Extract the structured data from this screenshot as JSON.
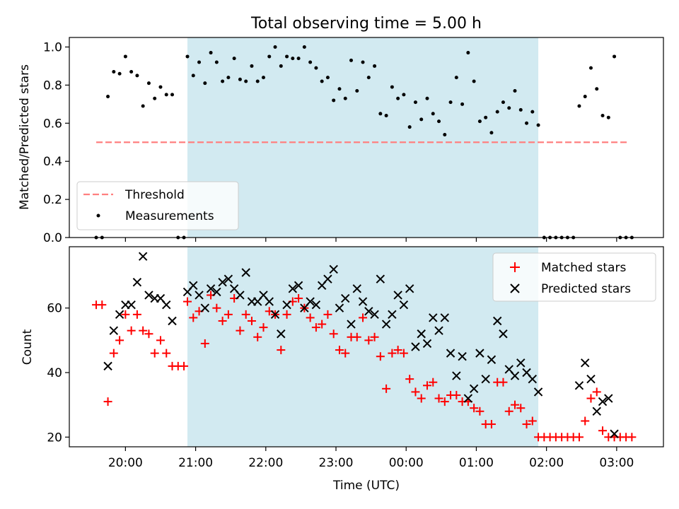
{
  "title": "Total observing time = 5.00 h",
  "colors": {
    "threshold": "#ff8080",
    "measurement": "#000000",
    "matched": "#ff0000",
    "predicted": "#000000",
    "shade": "#add8e6"
  },
  "chart_data": [
    {
      "type": "scatter",
      "ylabel": "Matched/Predicted stars",
      "ylim": [
        0,
        1.05
      ],
      "yticks": [
        0.0,
        0.2,
        0.4,
        0.6,
        0.8,
        1.0
      ],
      "ytick_labels": [
        "0.0",
        "0.2",
        "0.4",
        "0.6",
        "0.8",
        "1.0"
      ],
      "xlim": [
        "19:12",
        "03:40"
      ],
      "xticks": [
        "20:00",
        "21:00",
        "22:00",
        "23:00",
        "00:00",
        "01:00",
        "02:00",
        "03:00"
      ],
      "shaded_span": [
        "20:53",
        "01:53"
      ],
      "legend": {
        "position": "lower-left",
        "entries": [
          {
            "label": "Threshold",
            "marker": "dashed-line"
          },
          {
            "label": "Measurements",
            "marker": "dot"
          }
        ]
      },
      "threshold": {
        "name": "Threshold",
        "value": 0.5,
        "x_range": [
          "19:35",
          "03:10"
        ]
      },
      "series": [
        {
          "name": "Measurements",
          "x": [
            "19:35",
            "19:40",
            "19:45",
            "19:50",
            "19:55",
            "20:00",
            "20:05",
            "20:10",
            "20:15",
            "20:20",
            "20:25",
            "20:30",
            "20:35",
            "20:40",
            "20:45",
            "20:50",
            "20:53",
            "20:58",
            "21:03",
            "21:08",
            "21:13",
            "21:18",
            "21:23",
            "21:28",
            "21:33",
            "21:38",
            "21:43",
            "21:48",
            "21:53",
            "21:58",
            "22:03",
            "22:08",
            "22:13",
            "22:18",
            "22:23",
            "22:28",
            "22:33",
            "22:38",
            "22:43",
            "22:48",
            "22:53",
            "22:58",
            "23:03",
            "23:08",
            "23:13",
            "23:18",
            "23:23",
            "23:28",
            "23:33",
            "23:38",
            "23:43",
            "23:48",
            "23:53",
            "23:58",
            "00:03",
            "00:08",
            "00:13",
            "00:18",
            "00:23",
            "00:28",
            "00:33",
            "00:38",
            "00:43",
            "00:48",
            "00:53",
            "00:58",
            "01:03",
            "01:08",
            "01:13",
            "01:18",
            "01:23",
            "01:28",
            "01:33",
            "01:38",
            "01:43",
            "01:48",
            "01:53",
            "01:58",
            "02:03",
            "02:08",
            "02:13",
            "02:18",
            "02:23",
            "02:28",
            "02:33",
            "02:38",
            "02:43",
            "02:48",
            "02:53",
            "02:58",
            "03:03",
            "03:08",
            "03:13"
          ],
          "y": [
            0.0,
            0.0,
            0.74,
            0.87,
            0.86,
            0.95,
            0.87,
            0.85,
            0.69,
            0.81,
            0.73,
            0.79,
            0.75,
            0.75,
            0.0,
            0.0,
            0.95,
            0.85,
            0.92,
            0.81,
            0.97,
            0.92,
            0.82,
            0.84,
            0.94,
            0.83,
            0.82,
            0.9,
            0.82,
            0.84,
            0.95,
            1.0,
            0.9,
            0.95,
            0.94,
            0.94,
            1.0,
            0.92,
            0.89,
            0.82,
            0.84,
            0.72,
            0.78,
            0.73,
            0.93,
            0.77,
            0.92,
            0.84,
            0.9,
            0.65,
            0.64,
            0.79,
            0.73,
            0.75,
            0.58,
            0.71,
            0.62,
            0.73,
            0.65,
            0.61,
            0.54,
            0.71,
            0.84,
            0.7,
            0.97,
            0.82,
            0.61,
            0.63,
            0.55,
            0.66,
            0.71,
            0.68,
            0.77,
            0.67,
            0.6,
            0.66,
            0.59,
            0.0,
            0.0,
            0.0,
            0.0,
            0.0,
            0.0,
            0.69,
            0.74,
            0.89,
            0.78,
            0.64,
            0.63,
            0.95,
            0.0,
            0.0,
            0.0
          ]
        }
      ]
    },
    {
      "type": "scatter",
      "ylabel": "Count",
      "xlabel": "Time (UTC)",
      "ylim": [
        17,
        79
      ],
      "yticks": [
        20,
        40,
        60
      ],
      "ytick_labels": [
        "20",
        "40",
        "60"
      ],
      "xlim": [
        "19:12",
        "03:40"
      ],
      "xticks": [
        "20:00",
        "21:00",
        "22:00",
        "23:00",
        "00:00",
        "01:00",
        "02:00",
        "03:00"
      ],
      "xtick_labels": [
        "20:00",
        "21:00",
        "22:00",
        "23:00",
        "00:00",
        "01:00",
        "02:00",
        "03:00"
      ],
      "shaded_span": [
        "20:53",
        "01:53"
      ],
      "legend": {
        "position": "upper-right",
        "entries": [
          {
            "label": "Matched stars",
            "marker": "plus"
          },
          {
            "label": "Predicted stars",
            "marker": "cross"
          }
        ]
      },
      "series": [
        {
          "name": "Matched stars",
          "x": [
            "19:35",
            "19:40",
            "19:45",
            "19:50",
            "19:55",
            "20:00",
            "20:05",
            "20:10",
            "20:15",
            "20:20",
            "20:25",
            "20:30",
            "20:35",
            "20:40",
            "20:45",
            "20:50",
            "20:53",
            "20:58",
            "21:03",
            "21:08",
            "21:13",
            "21:18",
            "21:23",
            "21:28",
            "21:33",
            "21:38",
            "21:43",
            "21:48",
            "21:53",
            "21:58",
            "22:03",
            "22:08",
            "22:13",
            "22:18",
            "22:23",
            "22:28",
            "22:33",
            "22:38",
            "22:43",
            "22:48",
            "22:53",
            "22:58",
            "23:03",
            "23:08",
            "23:13",
            "23:18",
            "23:23",
            "23:28",
            "23:33",
            "23:38",
            "23:43",
            "23:48",
            "23:53",
            "23:58",
            "00:03",
            "00:08",
            "00:13",
            "00:18",
            "00:23",
            "00:28",
            "00:33",
            "00:38",
            "00:43",
            "00:48",
            "00:53",
            "00:58",
            "01:03",
            "01:08",
            "01:13",
            "01:18",
            "01:23",
            "01:28",
            "01:33",
            "01:38",
            "01:43",
            "01:48",
            "01:53",
            "01:58",
            "02:03",
            "02:08",
            "02:13",
            "02:18",
            "02:23",
            "02:28",
            "02:33",
            "02:38",
            "02:43",
            "02:48",
            "02:53",
            "02:58",
            "03:03",
            "03:08",
            "03:13"
          ],
          "y": [
            61,
            61,
            31,
            46,
            50,
            58,
            53,
            58,
            53,
            52,
            46,
            50,
            46,
            42,
            42,
            42,
            62,
            57,
            59,
            49,
            64,
            60,
            56,
            58,
            63,
            53,
            58,
            56,
            51,
            54,
            59,
            58,
            47,
            58,
            62,
            63,
            60,
            57,
            54,
            55,
            58,
            52,
            47,
            46,
            51,
            51,
            57,
            50,
            51,
            45,
            35,
            46,
            47,
            46,
            38,
            34,
            32,
            36,
            37,
            32,
            31,
            33,
            33,
            31,
            31,
            29,
            28,
            24,
            24,
            37,
            37,
            28,
            30,
            29,
            24,
            25,
            20,
            20,
            20,
            20,
            20,
            20,
            20,
            20,
            25,
            32,
            34,
            22,
            20,
            20,
            20,
            20,
            20
          ]
        },
        {
          "name": "Predicted stars",
          "x": [
            "19:45",
            "19:50",
            "19:55",
            "20:00",
            "20:05",
            "20:10",
            "20:15",
            "20:20",
            "20:25",
            "20:30",
            "20:35",
            "20:40",
            "20:53",
            "20:58",
            "21:03",
            "21:08",
            "21:13",
            "21:18",
            "21:23",
            "21:28",
            "21:33",
            "21:38",
            "21:43",
            "21:48",
            "21:53",
            "21:58",
            "22:03",
            "22:08",
            "22:13",
            "22:18",
            "22:23",
            "22:28",
            "22:33",
            "22:38",
            "22:43",
            "22:48",
            "22:53",
            "22:58",
            "23:03",
            "23:08",
            "23:13",
            "23:18",
            "23:23",
            "23:28",
            "23:33",
            "23:38",
            "23:43",
            "23:48",
            "23:53",
            "23:58",
            "00:03",
            "00:08",
            "00:13",
            "00:18",
            "00:23",
            "00:28",
            "00:33",
            "00:38",
            "00:43",
            "00:48",
            "00:53",
            "00:58",
            "01:03",
            "01:08",
            "01:13",
            "01:18",
            "01:23",
            "01:28",
            "01:33",
            "01:38",
            "01:43",
            "01:48",
            "01:53",
            "02:28",
            "02:33",
            "02:38",
            "02:43",
            "02:48",
            "02:53",
            "02:58"
          ],
          "y": [
            42,
            53,
            58,
            61,
            61,
            68,
            76,
            64,
            63,
            63,
            61,
            56,
            65,
            67,
            64,
            60,
            66,
            65,
            68,
            69,
            66,
            64,
            71,
            62,
            62,
            64,
            62,
            58,
            52,
            61,
            66,
            67,
            60,
            62,
            61,
            67,
            69,
            72,
            60,
            63,
            55,
            66,
            62,
            59,
            58,
            69,
            55,
            58,
            64,
            61,
            66,
            48,
            52,
            49,
            57,
            53,
            57,
            46,
            39,
            45,
            32,
            35,
            46,
            38,
            44,
            56,
            52,
            41,
            39,
            43,
            40,
            38,
            34,
            36,
            43,
            38,
            28,
            31,
            32,
            21
          ]
        }
      ]
    }
  ]
}
